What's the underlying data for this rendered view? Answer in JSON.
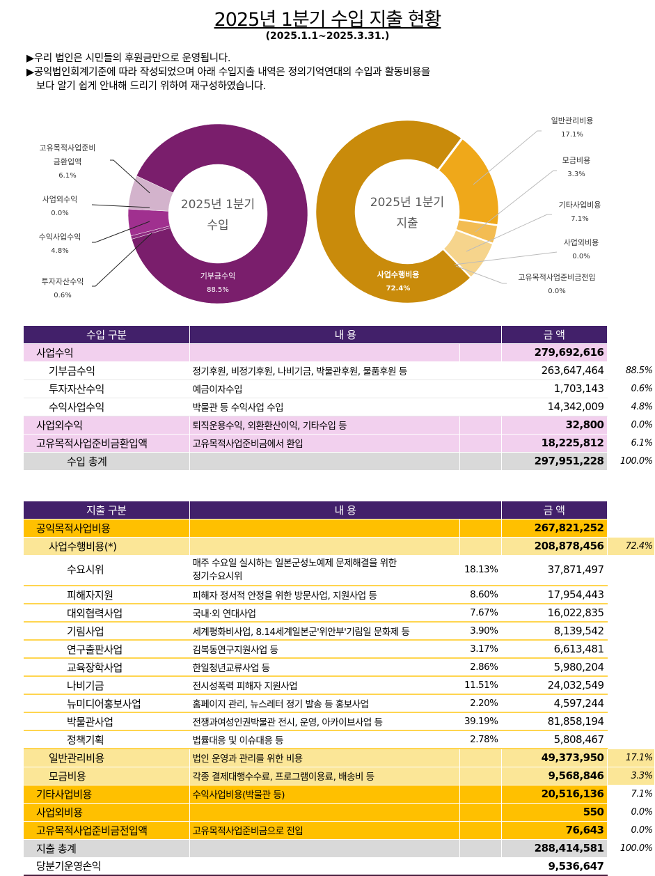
{
  "header": {
    "title": "2025년 1분기 수입 지출 현황",
    "period": "(2025.1.1~2025.3.31.)",
    "intro": [
      "▶우리 법인은 시민들의 후원금만으로 운영됩니다.",
      "▶공익법인회계기준에 따라 작성되었으며 아래 수입지출 내역은 정의기억연대의 수입과 활동비용을",
      "보다 알기 쉽게 안내해 드리기 위하여 재구성하였습니다."
    ]
  },
  "chart_data": [
    {
      "type": "pie",
      "title": "2025년 1분기 수입",
      "center": [
        "2025년 1분기",
        "수입"
      ],
      "slices": [
        {
          "label": "기부금수익",
          "value": 88.5,
          "pct": "88.5%",
          "color": "#7A1E6C"
        },
        {
          "label": "투자자산수익",
          "value": 0.6,
          "pct": "0.6%",
          "color": "#8E2A80"
        },
        {
          "label": "수익사업수익",
          "value": 4.8,
          "pct": "4.8%",
          "color": "#A0308F"
        },
        {
          "label": "사업외수익",
          "value": 0.0,
          "pct": "0.0%",
          "color": "#B85AA8"
        },
        {
          "label": "고유목적사업준비금환입액",
          "value": 6.1,
          "pct": "6.1%",
          "color": "#D3B3CC"
        }
      ]
    },
    {
      "type": "pie",
      "title": "2025년 1분기 지출",
      "center": [
        "2025년 1분기",
        "지출"
      ],
      "slices": [
        {
          "label": "일반관리비용",
          "value": 17.1,
          "pct": "17.1%",
          "color": "#EFA81A"
        },
        {
          "label": "모금비용",
          "value": 3.3,
          "pct": "3.3%",
          "color": "#F3BC52"
        },
        {
          "label": "기타사업비용",
          "value": 7.1,
          "pct": "7.1%",
          "color": "#F6D48C"
        },
        {
          "label": "사업외비용",
          "value": 0.0,
          "pct": "0.0%",
          "color": "#F8DFA8"
        },
        {
          "label": "고유목적사업준비금전입",
          "value": 0.0,
          "pct": "0.0%",
          "color": "#F8E4B8"
        },
        {
          "label": "사업수행비용",
          "value": 72.4,
          "pct": "72.4%",
          "color": "#C98B0B"
        }
      ]
    }
  ],
  "income_table": {
    "headers": [
      "수입 구분",
      "내 용",
      "금 액"
    ],
    "rows": [
      {
        "s": "pink",
        "i": "i1",
        "c": "사업수익",
        "d": "",
        "a": "279,692,616",
        "r": "",
        "ab": true
      },
      {
        "s": "white",
        "i": "i2",
        "c": "기부금수익",
        "d": "정기후원, 비정기후원, 나비기금, 박물관후원, 물품후원 등",
        "a": "263,647,464",
        "r": "88.5%"
      },
      {
        "s": "white",
        "i": "i2",
        "c": "투자자산수익",
        "d": "예금이자수입",
        "a": "1,703,143",
        "r": "0.6%"
      },
      {
        "s": "white",
        "i": "i2",
        "c": "수익사업수익",
        "d": "박물관 등 수익사업 수입",
        "a": "14,342,009",
        "r": "4.8%"
      },
      {
        "s": "pink",
        "i": "i1",
        "c": "사업외수익",
        "d": "퇴직운용수익, 외환환산이익, 기타수입 등",
        "a": "32,800",
        "r": "0.0%",
        "ab": true
      },
      {
        "s": "pink",
        "i": "i1",
        "c": "고유목적사업준비금환입액",
        "d": "고유목적사업준비금에서 환입",
        "a": "18,225,812",
        "r": "6.1%",
        "ab": true
      },
      {
        "s": "gray",
        "i": "i3",
        "c": "수입 총계",
        "d": "",
        "a": "297,951,228",
        "r": "100.0%",
        "ab": true
      }
    ]
  },
  "expense_table": {
    "headers": [
      "지출 구분",
      "내 용",
      "금 액"
    ],
    "rows": [
      {
        "s": "orange",
        "i": "i1",
        "c": "공익목적사업비용",
        "d": "",
        "p": "",
        "a": "267,821,252",
        "r": "",
        "ab": true
      },
      {
        "s": "lyel",
        "i": "i2",
        "c": "사업수행비용(*)",
        "d": "",
        "p": "",
        "a": "208,878,456",
        "r": "72.4%",
        "ab": true
      },
      {
        "s": "ywhite",
        "i": "i3",
        "c": "수요시위",
        "d": "매주 수요일 실시하는 일본군성노예제 문제해결을 위한\n정기수요시위",
        "p": "18.13%",
        "a": "37,871,497",
        "r": "",
        "tall": true
      },
      {
        "s": "ywhite",
        "i": "i3",
        "c": "피해자지원",
        "d": "피해자 정서적 안정을 위한 방문사업, 지원사업 등",
        "p": "8.60%",
        "a": "17,954,443",
        "r": ""
      },
      {
        "s": "ywhite",
        "i": "i3",
        "c": "대외협력사업",
        "d": "국내·외 연대사업",
        "p": "7.67%",
        "a": "16,022,835",
        "r": ""
      },
      {
        "s": "ywhite",
        "i": "i3",
        "c": "기림사업",
        "d": "세계평화비사업, 8.14세계일본군'위안부'기림일 문화제 등",
        "p": "3.90%",
        "a": "8,139,542",
        "r": ""
      },
      {
        "s": "ywhite",
        "i": "i3",
        "c": "연구출판사업",
        "d": "김복동연구지원사업 등",
        "p": "3.17%",
        "a": "6,613,481",
        "r": ""
      },
      {
        "s": "ywhite",
        "i": "i3",
        "c": "교육장학사업",
        "d": "한일청년교류사업 등",
        "p": "2.86%",
        "a": "5,980,204",
        "r": ""
      },
      {
        "s": "ywhite",
        "i": "i3",
        "c": "나비기금",
        "d": "전시성폭력 피해자 지원사업",
        "p": "11.51%",
        "a": "24,032,549",
        "r": ""
      },
      {
        "s": "ywhite",
        "i": "i3",
        "c": "뉴미디어홍보사업",
        "d": "홈페이지 관리, 뉴스레터 정기 발송 등 홍보사업",
        "p": "2.20%",
        "a": "4,597,244",
        "r": ""
      },
      {
        "s": "ywhite",
        "i": "i3",
        "c": "박물관사업",
        "d": "전쟁과여성인권박물관 전시, 운영, 아카이브사업 등",
        "p": "39.19%",
        "a": "81,858,194",
        "r": ""
      },
      {
        "s": "ywhite",
        "i": "i3",
        "c": "정책기획",
        "d": "법률대응 및 이슈대응 등",
        "p": "2.78%",
        "a": "5,808,467",
        "r": ""
      },
      {
        "s": "lyel",
        "i": "i2",
        "c": "일반관리비용",
        "d": "법인 운영과 관리를 위한 비용",
        "p": "",
        "a": "49,373,950",
        "r": "17.1%",
        "ab": true
      },
      {
        "s": "lyel",
        "i": "i2",
        "c": "모금비용",
        "d": "각종 결제대행수수료, 프로그램이용료, 배송비 등",
        "p": "",
        "a": "9,568,846",
        "r": "3.3%",
        "ab": true
      },
      {
        "s": "orange",
        "i": "i1",
        "c": "기타사업비용",
        "d": "수익사업비용(박물관 등)",
        "p": "",
        "a": "20,516,136",
        "r": "7.1%",
        "ab": true
      },
      {
        "s": "orange",
        "i": "i1",
        "c": "사업외비용",
        "d": "",
        "p": "",
        "a": "550",
        "r": "0.0%",
        "ab": true
      },
      {
        "s": "orange",
        "i": "i1",
        "c": "고유목적사업준비금전입액",
        "d": "고유목적사업준비금으로 전입",
        "p": "",
        "a": "76,643",
        "r": "0.0%",
        "ab": true
      },
      {
        "s": "gray",
        "i": "i1",
        "c": "지출 총계",
        "d": "",
        "p": "",
        "a": "288,414,581",
        "r": "100.0%",
        "ab": true
      },
      {
        "s": "last",
        "i": "i1",
        "c": "당분기운영손익",
        "d": "",
        "p": "",
        "a": "9,536,647",
        "r": "",
        "ab": true
      }
    ]
  }
}
